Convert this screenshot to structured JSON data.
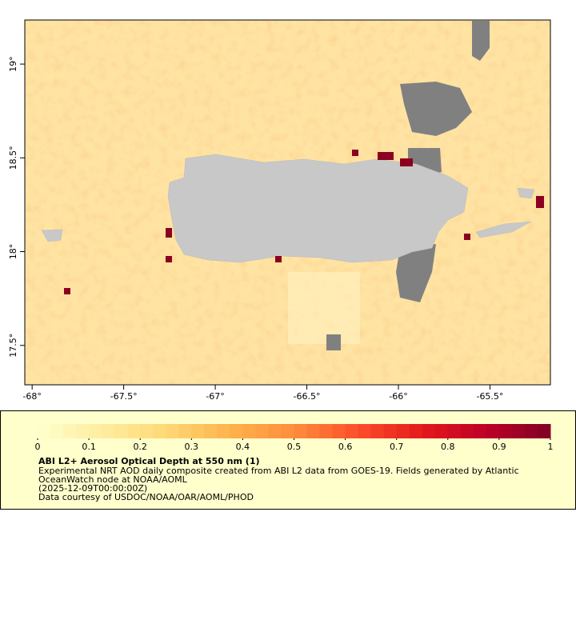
{
  "chart_data": {
    "type": "map",
    "title": "ABI L2+ Aerosol Optical Depth at 550 nm (1)",
    "description": [
      "Experimental NRT AOD daily composite created from ABI L2 data from GOES-19. Fields generated by Atlantic",
      "OceanWatch node at NOAA/AOML",
      "(2025-12-09T00:00:00Z)",
      "Data courtesy of USDOC/NOAA/OAR/AOML/PHOD"
    ],
    "xlim": [
      -68.04,
      -65.17
    ],
    "ylim": [
      17.29,
      19.235
    ],
    "xticks": [
      {
        "value": -68,
        "label": "-68°"
      },
      {
        "value": -67.5,
        "label": "-67.5°"
      },
      {
        "value": -67,
        "label": "-67°"
      },
      {
        "value": -66.5,
        "label": "-66.5°"
      },
      {
        "value": -66,
        "label": "-66°"
      },
      {
        "value": -65.5,
        "label": "-65.5°"
      }
    ],
    "yticks": [
      {
        "value": 17.5,
        "label": "17.5°"
      },
      {
        "value": 18,
        "label": "18°"
      },
      {
        "value": 18.5,
        "label": "18.5°"
      },
      {
        "value": 19,
        "label": "19°"
      }
    ],
    "colorbar": {
      "lim": [
        0,
        1
      ],
      "ticks": [
        0,
        0.1,
        0.2,
        0.3,
        0.4,
        0.5,
        0.6,
        0.7,
        0.8,
        0.9,
        1
      ],
      "steps": 40,
      "colors": [
        "#ffffcc",
        "#ffeda0",
        "#fed976",
        "#feb24c",
        "#fd8d3c",
        "#fc4e2a",
        "#e31a1c",
        "#bd0026",
        "#800026"
      ]
    }
  }
}
